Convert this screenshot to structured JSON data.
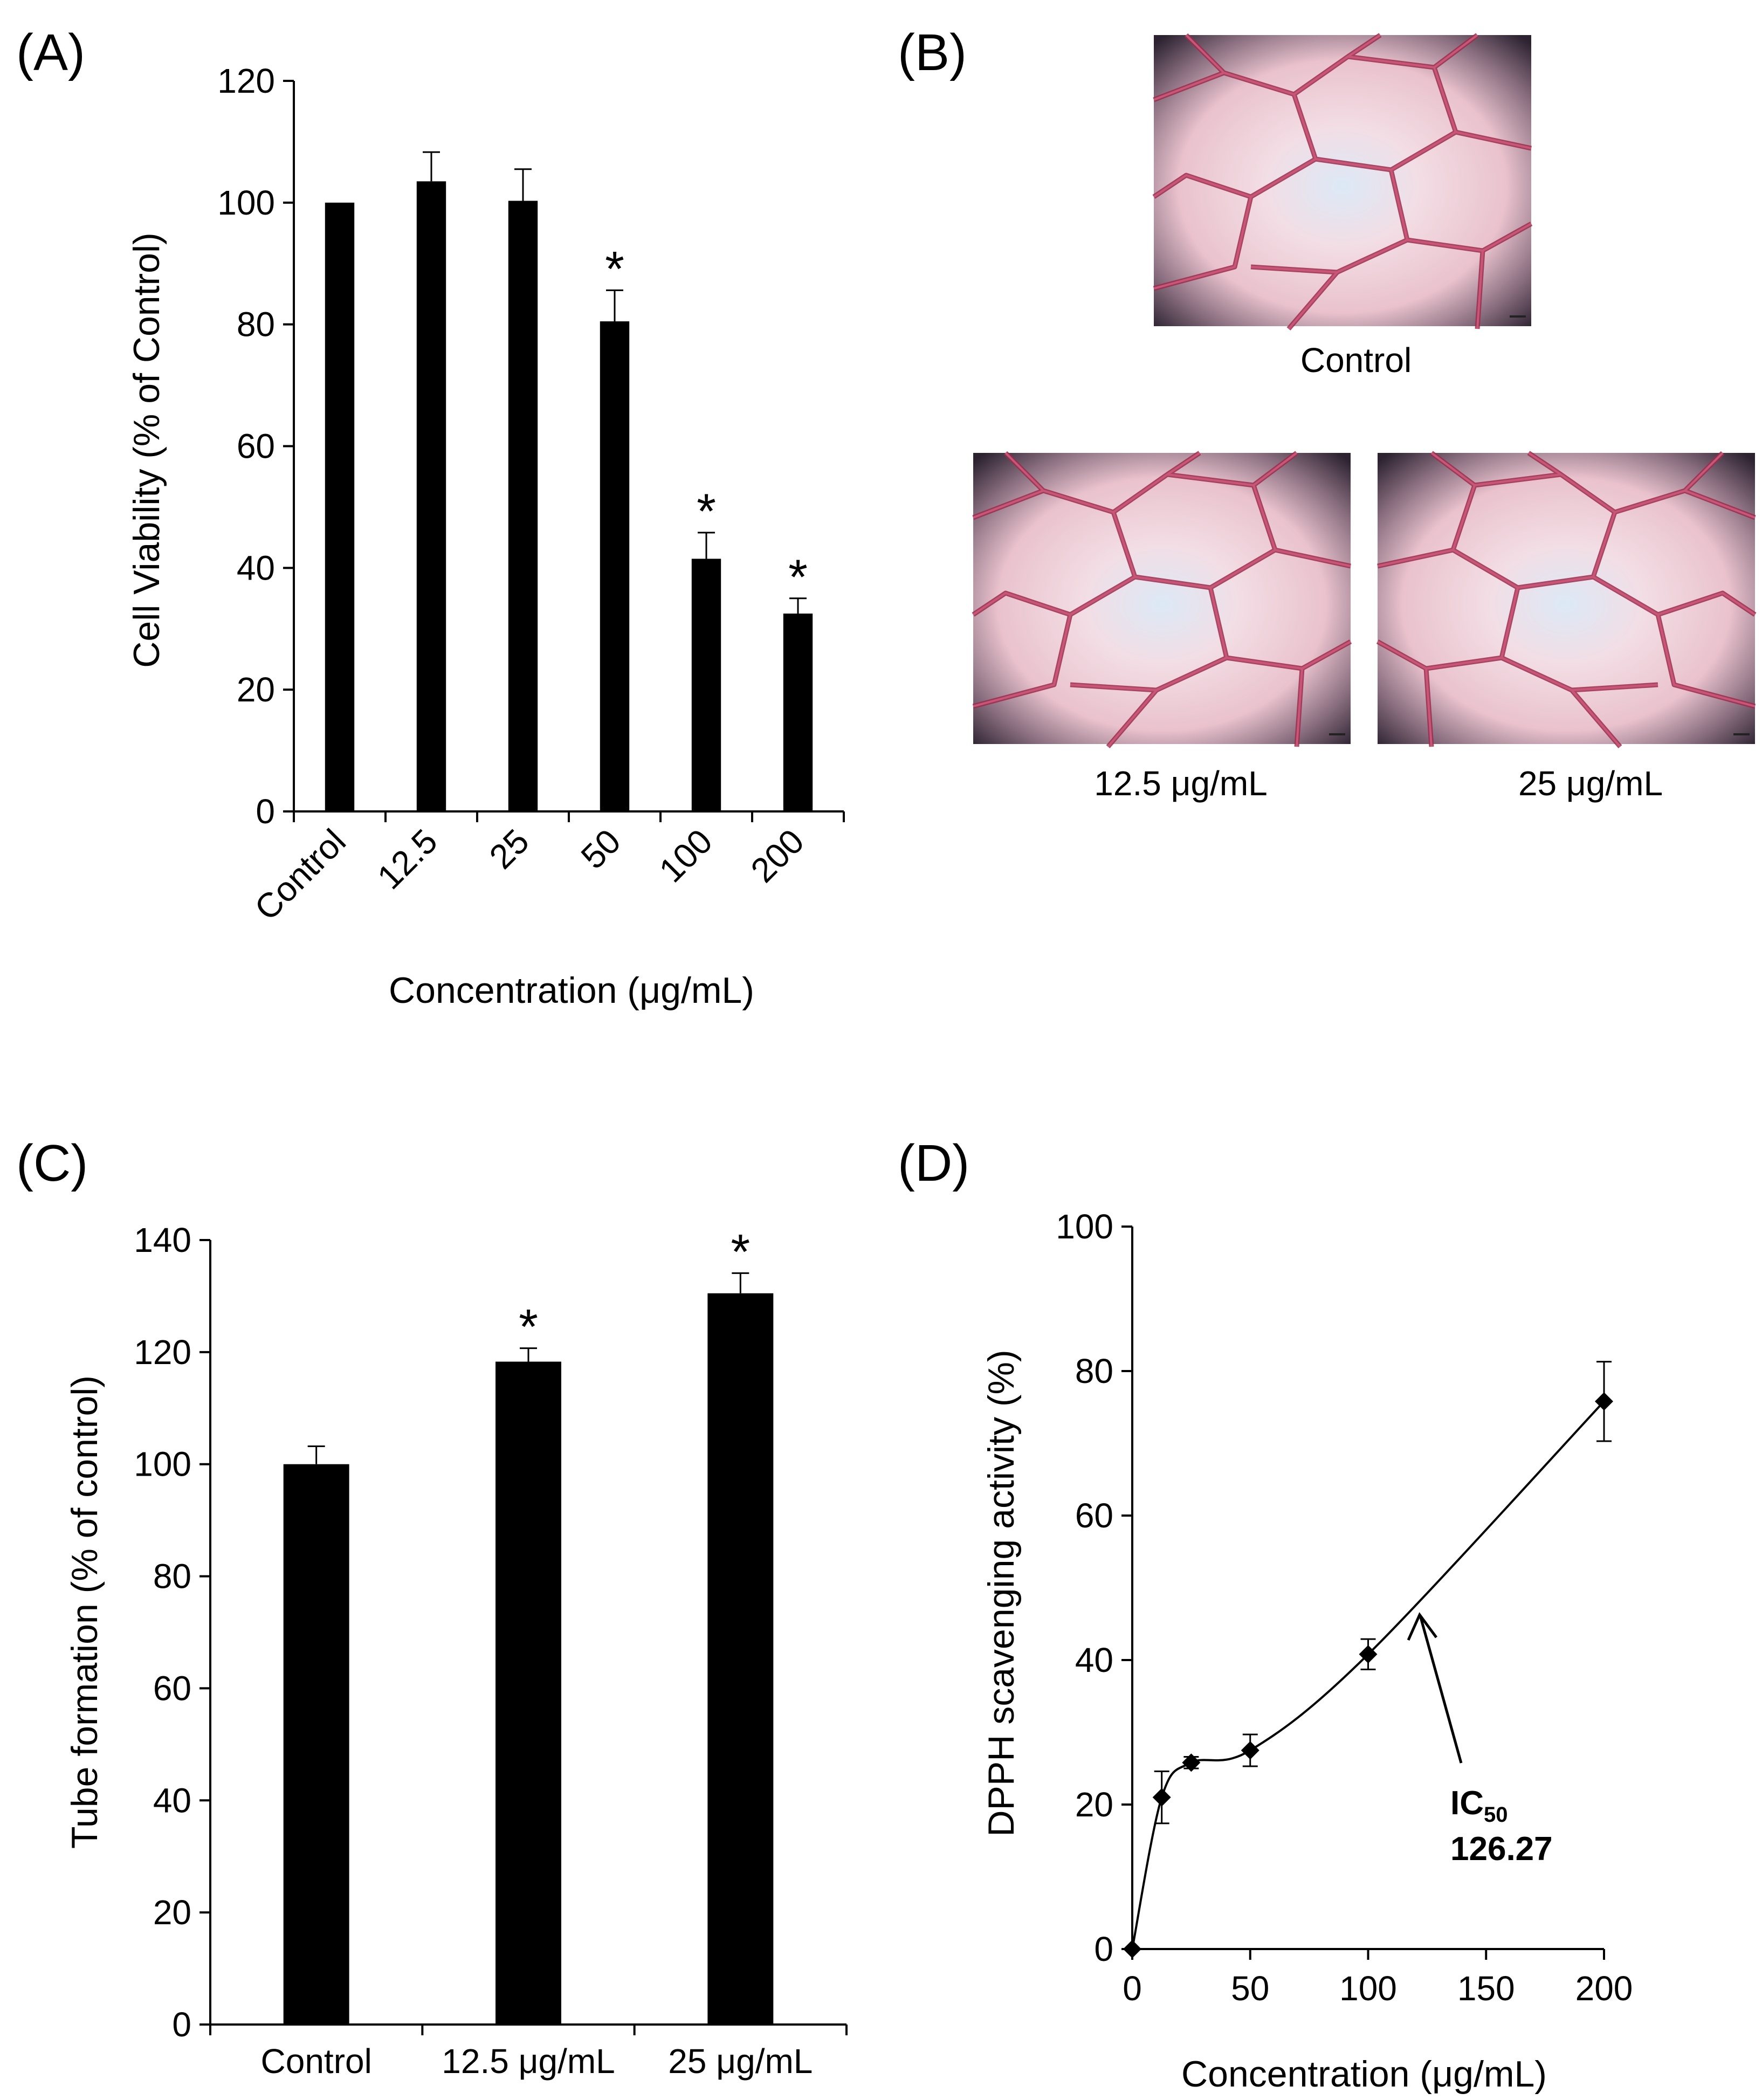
{
  "panels": {
    "a": "(A)",
    "b": "(B)",
    "c": "(C)",
    "d": "(D)"
  },
  "images": {
    "captions": [
      "Control",
      "12.5 μg/mL",
      "25 μg/mL"
    ]
  },
  "annotation": {
    "ic_main": "IC",
    "ic_sub": "50",
    "ic_value": "126.27"
  },
  "chart_data": [
    {
      "type": "bar",
      "categories": [
        "Control",
        "12.5",
        "25",
        "50",
        "100",
        "200"
      ],
      "values": [
        100,
        103.5,
        100.3,
        80.5,
        41.5,
        32.5
      ],
      "errors": [
        0,
        4.8,
        5.2,
        5.1,
        4.3,
        2.5
      ],
      "significant": [
        false,
        false,
        false,
        true,
        true,
        true
      ],
      "ylim": [
        0,
        120
      ],
      "yticks": [
        0,
        20,
        40,
        60,
        80,
        100,
        120
      ],
      "xlabel": "Concentration (μg/mL)",
      "ylabel": "Cell Viability (% of Control)",
      "colors": {
        "bar": "#000000"
      }
    },
    {
      "type": "bar",
      "categories": [
        "Control",
        "12.5 μg/mL",
        "25 μg/mL"
      ],
      "values": [
        100,
        118.3,
        130.5
      ],
      "errors": [
        3.2,
        2.4,
        3.6
      ],
      "significant": [
        false,
        true,
        true
      ],
      "ylim": [
        0,
        140
      ],
      "yticks": [
        0,
        20,
        40,
        60,
        80,
        100,
        120,
        140
      ],
      "xlabel": "",
      "ylabel": "Tube formation (% of control)",
      "colors": {
        "bar": "#000000"
      }
    },
    {
      "type": "line",
      "x": [
        0,
        12.5,
        25,
        50,
        100,
        200
      ],
      "y": [
        0,
        21,
        25.8,
        27.5,
        40.8,
        75.8
      ],
      "errors": [
        0,
        3.6,
        0.8,
        2.2,
        2.1,
        5.5
      ],
      "xlim": [
        0,
        200
      ],
      "ylim": [
        0,
        100
      ],
      "xticks": [
        0,
        50,
        100,
        150,
        200
      ],
      "yticks": [
        0,
        20,
        40,
        60,
        80,
        100
      ],
      "xlabel": "Concentration (μg/mL)",
      "ylabel": "DPPH scavenging activity (%)",
      "marker": "diamond",
      "colors": {
        "line": "#000000"
      }
    }
  ]
}
